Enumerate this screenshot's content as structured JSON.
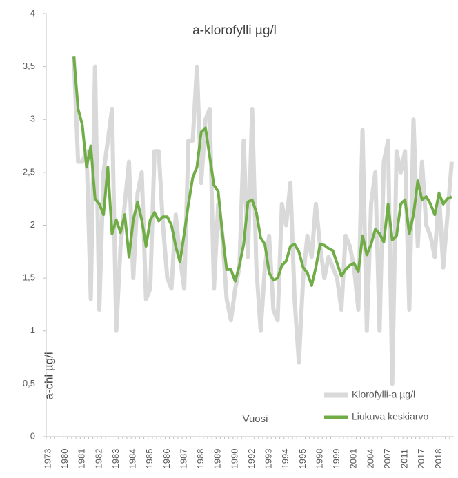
{
  "chart_data": {
    "type": "line",
    "title": "a-klorofylli  µg/l",
    "xlabel": "Vuosi",
    "ylabel": "a-chl µg/l",
    "categories": [
      "1973",
      null,
      null,
      null,
      "1980",
      null,
      null,
      null,
      "1981",
      null,
      null,
      null,
      "1982",
      null,
      null,
      null,
      "1983",
      null,
      null,
      null,
      "1984",
      null,
      null,
      null,
      "1985",
      null,
      null,
      null,
      "1986",
      null,
      null,
      null,
      "1987",
      null,
      null,
      null,
      "1988",
      null,
      null,
      null,
      "1989",
      null,
      null,
      null,
      "1990",
      null,
      null,
      null,
      "1992",
      null,
      null,
      null,
      "1993",
      null,
      null,
      null,
      "1994",
      null,
      null,
      null,
      "1995",
      null,
      null,
      null,
      "1998",
      null,
      null,
      null,
      "1999",
      null,
      null,
      null,
      "2001",
      null,
      null,
      null,
      "2004",
      null,
      null,
      null,
      "2007",
      null,
      null,
      null,
      "2011",
      null,
      null,
      null,
      "2017",
      null,
      null,
      null,
      "2018",
      null,
      null,
      null
    ],
    "series": [
      {
        "name": "Klorofylli-a µg/l",
        "color": "#d9d9d9",
        "width": 6,
        "values": [
          null,
          null,
          null,
          null,
          null,
          null,
          3.6,
          2.6,
          2.6,
          2.7,
          1.3,
          3.5,
          1.2,
          2.5,
          2.8,
          3.1,
          1.0,
          1.8,
          2.2,
          2.6,
          1.5,
          2.3,
          2.5,
          1.3,
          1.4,
          2.7,
          2.7,
          2.0,
          1.5,
          1.4,
          2.1,
          1.7,
          1.4,
          2.8,
          2.8,
          3.5,
          2.4,
          3.0,
          3.1,
          1.4,
          2.2,
          1.9,
          1.3,
          1.1,
          1.4,
          1.6,
          2.8,
          1.7,
          3.1,
          1.6,
          1.0,
          1.6,
          1.9,
          1.2,
          1.1,
          2.2,
          2.0,
          2.4,
          1.3,
          0.7,
          1.5,
          1.9,
          1.7,
          2.2,
          1.8,
          1.5,
          1.7,
          1.6,
          1.5,
          1.2,
          1.9,
          1.8,
          1.6,
          1.2,
          2.9,
          1.0,
          2.2,
          2.5,
          1.0,
          2.6,
          2.8,
          0.5,
          2.7,
          2.5,
          2.7,
          1.2,
          3.0,
          1.8,
          2.6,
          2.0,
          1.9,
          1.7,
          2.3,
          1.6,
          2.1,
          2.6
        ]
      },
      {
        "name": "Liukuva keskiarvo",
        "color": "#70ad47",
        "width": 4,
        "values": [
          null,
          null,
          null,
          null,
          null,
          null,
          3.6,
          3.1,
          2.95,
          2.55,
          2.75,
          2.25,
          2.2,
          2.1,
          2.55,
          1.92,
          2.05,
          1.93,
          2.1,
          1.7,
          2.05,
          2.22,
          2.05,
          1.8,
          2.05,
          2.12,
          2.04,
          2.08,
          2.08,
          2.0,
          1.8,
          1.65,
          1.92,
          2.2,
          2.45,
          2.55,
          2.88,
          2.92,
          2.65,
          2.38,
          2.32,
          1.92,
          1.58,
          1.58,
          1.47,
          1.62,
          1.82,
          2.22,
          2.24,
          2.12,
          1.88,
          1.82,
          1.55,
          1.48,
          1.5,
          1.62,
          1.66,
          1.8,
          1.82,
          1.75,
          1.6,
          1.55,
          1.43,
          1.6,
          1.82,
          1.81,
          1.78,
          1.76,
          1.64,
          1.52,
          1.58,
          1.62,
          1.64,
          1.56,
          1.9,
          1.72,
          1.82,
          1.96,
          1.92,
          1.84,
          2.2,
          1.86,
          1.9,
          2.2,
          2.24,
          1.92,
          2.1,
          2.42,
          2.24,
          2.27,
          2.2,
          2.1,
          2.3,
          2.2,
          2.25,
          2.27
        ]
      }
    ],
    "ylim": [
      0,
      4
    ],
    "yticks": [
      0,
      {
        "value": 0.5,
        "label": "0,5"
      },
      1,
      {
        "value": 1.5,
        "label": "1,5"
      },
      2,
      {
        "value": 2.5,
        "label": "2,5"
      },
      3,
      {
        "value": 3.5,
        "label": "3,5"
      },
      4
    ]
  }
}
